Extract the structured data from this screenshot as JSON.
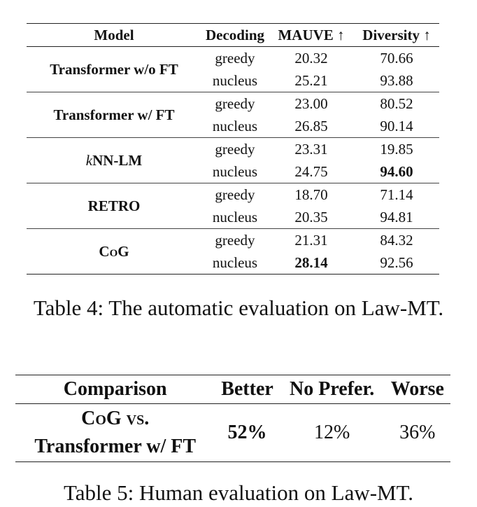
{
  "table4": {
    "headers": {
      "model": "Model",
      "decoding": "Decoding",
      "mauve": "MAUVE ↑",
      "diversity": "Diversity ↑"
    },
    "groups": [
      {
        "model": "Transformer w/o FT",
        "rows": [
          {
            "decoding": "greedy",
            "mauve": "20.32",
            "diversity": "70.66"
          },
          {
            "decoding": "nucleus",
            "mauve": "25.21",
            "diversity": "93.88"
          }
        ]
      },
      {
        "model": "Transformer w/ FT",
        "rows": [
          {
            "decoding": "greedy",
            "mauve": "23.00",
            "diversity": "80.52"
          },
          {
            "decoding": "nucleus",
            "mauve": "26.85",
            "diversity": "90.14"
          }
        ]
      },
      {
        "model_prefix": "k",
        "model": "NN-LM",
        "rows": [
          {
            "decoding": "greedy",
            "mauve": "23.31",
            "diversity": "19.85"
          },
          {
            "decoding": "nucleus",
            "mauve": "24.75",
            "diversity": "94.60"
          }
        ]
      },
      {
        "model": "RETRO",
        "rows": [
          {
            "decoding": "greedy",
            "mauve": "18.70",
            "diversity": "71.14"
          },
          {
            "decoding": "nucleus",
            "mauve": "20.35",
            "diversity": "94.81"
          }
        ]
      },
      {
        "model": "CoG",
        "rows": [
          {
            "decoding": "greedy",
            "mauve": "21.31",
            "diversity": "84.32"
          },
          {
            "decoding": "nucleus",
            "mauve": "28.14",
            "diversity": "92.56"
          }
        ]
      }
    ],
    "caption": "Table 4: The automatic evaluation on Law-MT."
  },
  "table5": {
    "headers": {
      "comparison": "Comparison",
      "better": "Better",
      "no_prefer": "No Prefer.",
      "worse": "Worse"
    },
    "row": {
      "comparison_line1": "CoG vs.",
      "comparison_line2": "Transformer w/ FT",
      "better": "52%",
      "no_prefer": "12%",
      "worse": "36%"
    },
    "caption": "Table 5: Human evaluation on Law-MT."
  }
}
